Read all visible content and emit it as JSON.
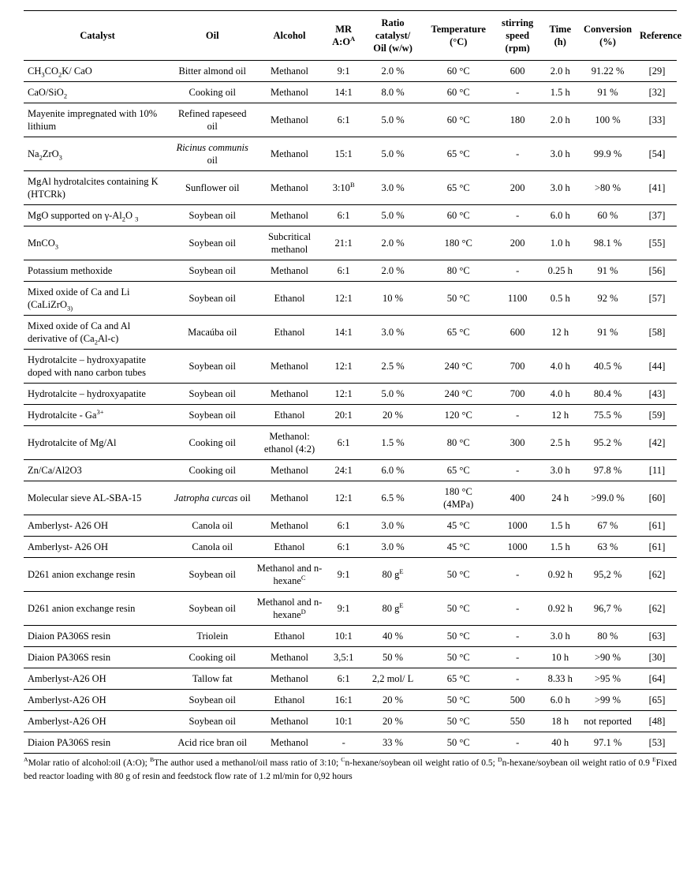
{
  "page": {
    "background_color": "#ffffff",
    "text_color": "#000000"
  },
  "table": {
    "columns": [
      {
        "id": "catalyst",
        "label": "Catalyst"
      },
      {
        "id": "oil",
        "label": "Oil"
      },
      {
        "id": "alcohol",
        "label": "Alcohol"
      },
      {
        "id": "mr",
        "label": {
          "runs": [
            {
              "t": "MR\nA:O"
            },
            {
              "t": "A",
              "sup": true
            }
          ]
        }
      },
      {
        "id": "ratio",
        "label": "Ratio\ncatalyst/\nOil (w/w)"
      },
      {
        "id": "temperature",
        "label": "Temperature\n(°C)"
      },
      {
        "id": "stirring",
        "label": "stirring\nspeed\n(rpm)"
      },
      {
        "id": "time",
        "label": "Time\n(h)"
      },
      {
        "id": "conversion",
        "label": "Conversion\n(%)"
      },
      {
        "id": "reference",
        "label": "Reference"
      }
    ],
    "rows": [
      [
        {
          "runs": [
            {
              "t": "CH"
            },
            {
              "t": "3",
              "sub": true
            },
            {
              "t": "CO"
            },
            {
              "t": "2",
              "sub": true
            },
            {
              "t": "K/ CaO"
            }
          ]
        },
        "Bitter almond oil",
        "Methanol",
        "9:1",
        "2.0 %",
        "60 °C",
        "600",
        "2.0 h",
        "91.22 %",
        "[29]"
      ],
      [
        {
          "runs": [
            {
              "t": "CaO/SiO"
            },
            {
              "t": "2",
              "sub": true
            }
          ]
        },
        "Cooking oil",
        "Methanol",
        "14:1",
        "8.0 %",
        "60 °C",
        "-",
        "1.5 h",
        "91 %",
        "[32]"
      ],
      [
        "Mayenite impregnated with 10% lithium",
        "Refined rapeseed oil",
        "Methanol",
        "6:1",
        "5.0 %",
        "60 °C",
        "180",
        "2.0 h",
        "100 %",
        "[33]"
      ],
      [
        {
          "runs": [
            {
              "t": "Na"
            },
            {
              "t": "2",
              "sub": true
            },
            {
              "t": "ZrO"
            },
            {
              "t": "3",
              "sub": true
            }
          ]
        },
        {
          "runs": [
            {
              "t": "Ricinus communis",
              "i": true
            },
            {
              "t": " oil"
            }
          ]
        },
        "Methanol",
        "15:1",
        "5.0 %",
        "65 °C",
        "-",
        "3.0 h",
        "99.9 %",
        "[54]"
      ],
      [
        "MgAl hydrotalcites containing K (HTCRk)",
        "Sunflower oil",
        "Methanol",
        {
          "runs": [
            {
              "t": "3:10"
            },
            {
              "t": "B",
              "sup": true
            }
          ]
        },
        "3.0 %",
        "65 °C",
        "200",
        "3.0 h",
        ">80 %",
        "[41]"
      ],
      [
        {
          "runs": [
            {
              "t": "MgO supported on γ-Al"
            },
            {
              "t": "2",
              "sub": true
            },
            {
              "t": "O "
            },
            {
              "t": "3",
              "sub": true
            }
          ]
        },
        "Soybean oil",
        "Methanol",
        "6:1",
        "5.0 %",
        "60 °C",
        "-",
        "6.0 h",
        "60 %",
        "[37]"
      ],
      [
        {
          "runs": [
            {
              "t": "MnCO"
            },
            {
              "t": "3",
              "sub": true
            }
          ]
        },
        "Soybean oil",
        "Subcritical methanol",
        "21:1",
        "2.0 %",
        "180 °C",
        "200",
        "1.0 h",
        "98.1 %",
        "[55]"
      ],
      [
        "Potassium methoxide",
        "Soybean oil",
        "Methanol",
        "6:1",
        "2.0 %",
        "80 °C",
        "-",
        "0.25 h",
        "91 %",
        "[56]"
      ],
      [
        {
          "runs": [
            {
              "t": "Mixed oxide of Ca and Li (CaLiZrO"
            },
            {
              "t": "3)",
              "sub": true
            }
          ]
        },
        "Soybean oil",
        "Ethanol",
        "12:1",
        "10 %",
        "50 °C",
        "1100",
        "0.5 h",
        "92 %",
        "[57]"
      ],
      [
        {
          "runs": [
            {
              "t": "Mixed oxide of Ca and Al derivative of (Ca"
            },
            {
              "t": "2",
              "sub": true
            },
            {
              "t": "Al-c)"
            }
          ]
        },
        "Macaúba oil",
        "Ethanol",
        "14:1",
        "3.0 %",
        "65 °C",
        "600",
        "12 h",
        "91 %",
        "[58]"
      ],
      [
        "Hydrotalcite – hydroxyapatite doped with nano carbon tubes",
        "Soybean oil",
        "Methanol",
        "12:1",
        "2.5 %",
        "240 °C",
        "700",
        "4.0 h",
        "40.5 %",
        "[44]"
      ],
      [
        "Hydrotalcite – hydroxyapatite",
        "Soybean oil",
        "Methanol",
        "12:1",
        "5.0 %",
        "240 °C",
        "700",
        "4.0 h",
        "80.4 %",
        "[43]"
      ],
      [
        {
          "runs": [
            {
              "t": "Hydrotalcite - Ga"
            },
            {
              "t": "3+",
              "sup": true
            }
          ]
        },
        "Soybean oil",
        "Ethanol",
        "20:1",
        "20 %",
        "120 °C",
        "-",
        "12 h",
        "75.5 %",
        "[59]"
      ],
      [
        "Hydrotalcite of Mg/Al",
        "Cooking oil",
        "Methanol: ethanol (4:2)",
        "6:1",
        "1.5 %",
        "80 °C",
        "300",
        "2.5 h",
        "95.2 %",
        "[42]"
      ],
      [
        "Zn/Ca/Al2O3",
        "Cooking oil",
        "Methanol",
        "24:1",
        "6.0 %",
        "65 °C",
        "-",
        "3.0 h",
        "97.8 %",
        "[11]"
      ],
      [
        "Molecular sieve AL-SBA-15",
        {
          "runs": [
            {
              "t": "Jatropha curcas",
              "i": true
            },
            {
              "t": " oil"
            }
          ]
        },
        "Methanol",
        "12:1",
        "6.5 %",
        "180 °C\n(4MPa)",
        "400",
        "24 h",
        ">99.0 %",
        "[60]"
      ],
      [
        "Amberlyst- A26 OH",
        "Canola oil",
        "Methanol",
        "6:1",
        "3.0 %",
        "45 °C",
        "1000",
        "1.5 h",
        "67 %",
        "[61]"
      ],
      [
        "Amberlyst- A26 OH",
        "Canola oil",
        "Ethanol",
        "6:1",
        "3.0 %",
        "45 °C",
        "1000",
        "1.5 h",
        "63 %",
        "[61]"
      ],
      [
        "D261 anion exchange resin",
        "Soybean oil",
        {
          "runs": [
            {
              "t": "Methanol and n-hexane"
            },
            {
              "t": "C",
              "sup": true
            }
          ]
        },
        "9:1",
        {
          "runs": [
            {
              "t": "80 g"
            },
            {
              "t": "E",
              "sup": true
            }
          ]
        },
        "50 °C",
        "-",
        "0.92 h",
        "95,2 %",
        "[62]"
      ],
      [
        "D261 anion exchange resin",
        "Soybean oil",
        {
          "runs": [
            {
              "t": "Methanol and n-hexane"
            },
            {
              "t": "D",
              "sup": true
            }
          ]
        },
        "9:1",
        {
          "runs": [
            {
              "t": "80 g"
            },
            {
              "t": "E",
              "sup": true
            }
          ]
        },
        "50 °C",
        "-",
        "0.92 h",
        "96,7 %",
        "[62]"
      ],
      [
        "Diaion PA306S resin",
        "Triolein",
        "Ethanol",
        "10:1",
        "40 %",
        "50 °C",
        "-",
        "3.0 h",
        "80 %",
        "[63]"
      ],
      [
        "Diaion PA306S resin",
        "Cooking oil",
        "Methanol",
        "3,5:1",
        "50 %",
        "50 °C",
        "-",
        "10 h",
        ">90 %",
        "[30]"
      ],
      [
        "Amberlyst-A26 OH",
        "Tallow fat",
        "Methanol",
        "6:1",
        "2,2 mol/ L",
        "65 °C",
        "-",
        "8.33 h",
        ">95 %",
        "[64]"
      ],
      [
        "Amberlyst-A26 OH",
        "Soybean oil",
        "Ethanol",
        "16:1",
        "20 %",
        "50 °C",
        "500",
        "6.0 h",
        ">99 %",
        "[65]"
      ],
      [
        "Amberlyst-A26 OH",
        "Soybean oil",
        "Methanol",
        "10:1",
        "20 %",
        "50 °C",
        "550",
        "18 h",
        "not reported",
        "[48]"
      ],
      [
        "Diaion PA306S resin",
        "Acid rice bran oil",
        "Methanol",
        "-",
        "33 %",
        "50 °C",
        "-",
        "40 h",
        "97.1 %",
        "[53]"
      ]
    ],
    "footnote_runs": [
      {
        "t": "A",
        "sup": true
      },
      {
        "t": "Molar ratio of alcohol:oil (A:O); "
      },
      {
        "t": "B",
        "sup": true
      },
      {
        "t": "The author used a methanol/oil mass ratio of 3:10; "
      },
      {
        "t": "C",
        "sup": true
      },
      {
        "t": "n-hexane/soybean oil weight ratio of 0.5; "
      },
      {
        "t": "D",
        "sup": true
      },
      {
        "t": "n-hexane/soybean oil weight ratio of 0.9 "
      },
      {
        "t": "E",
        "sup": true
      },
      {
        "t": "Fixed bed reactor loading with 80 g of resin and feedstock flow rate of 1.2 ml/min for 0,92 hours"
      }
    ]
  }
}
